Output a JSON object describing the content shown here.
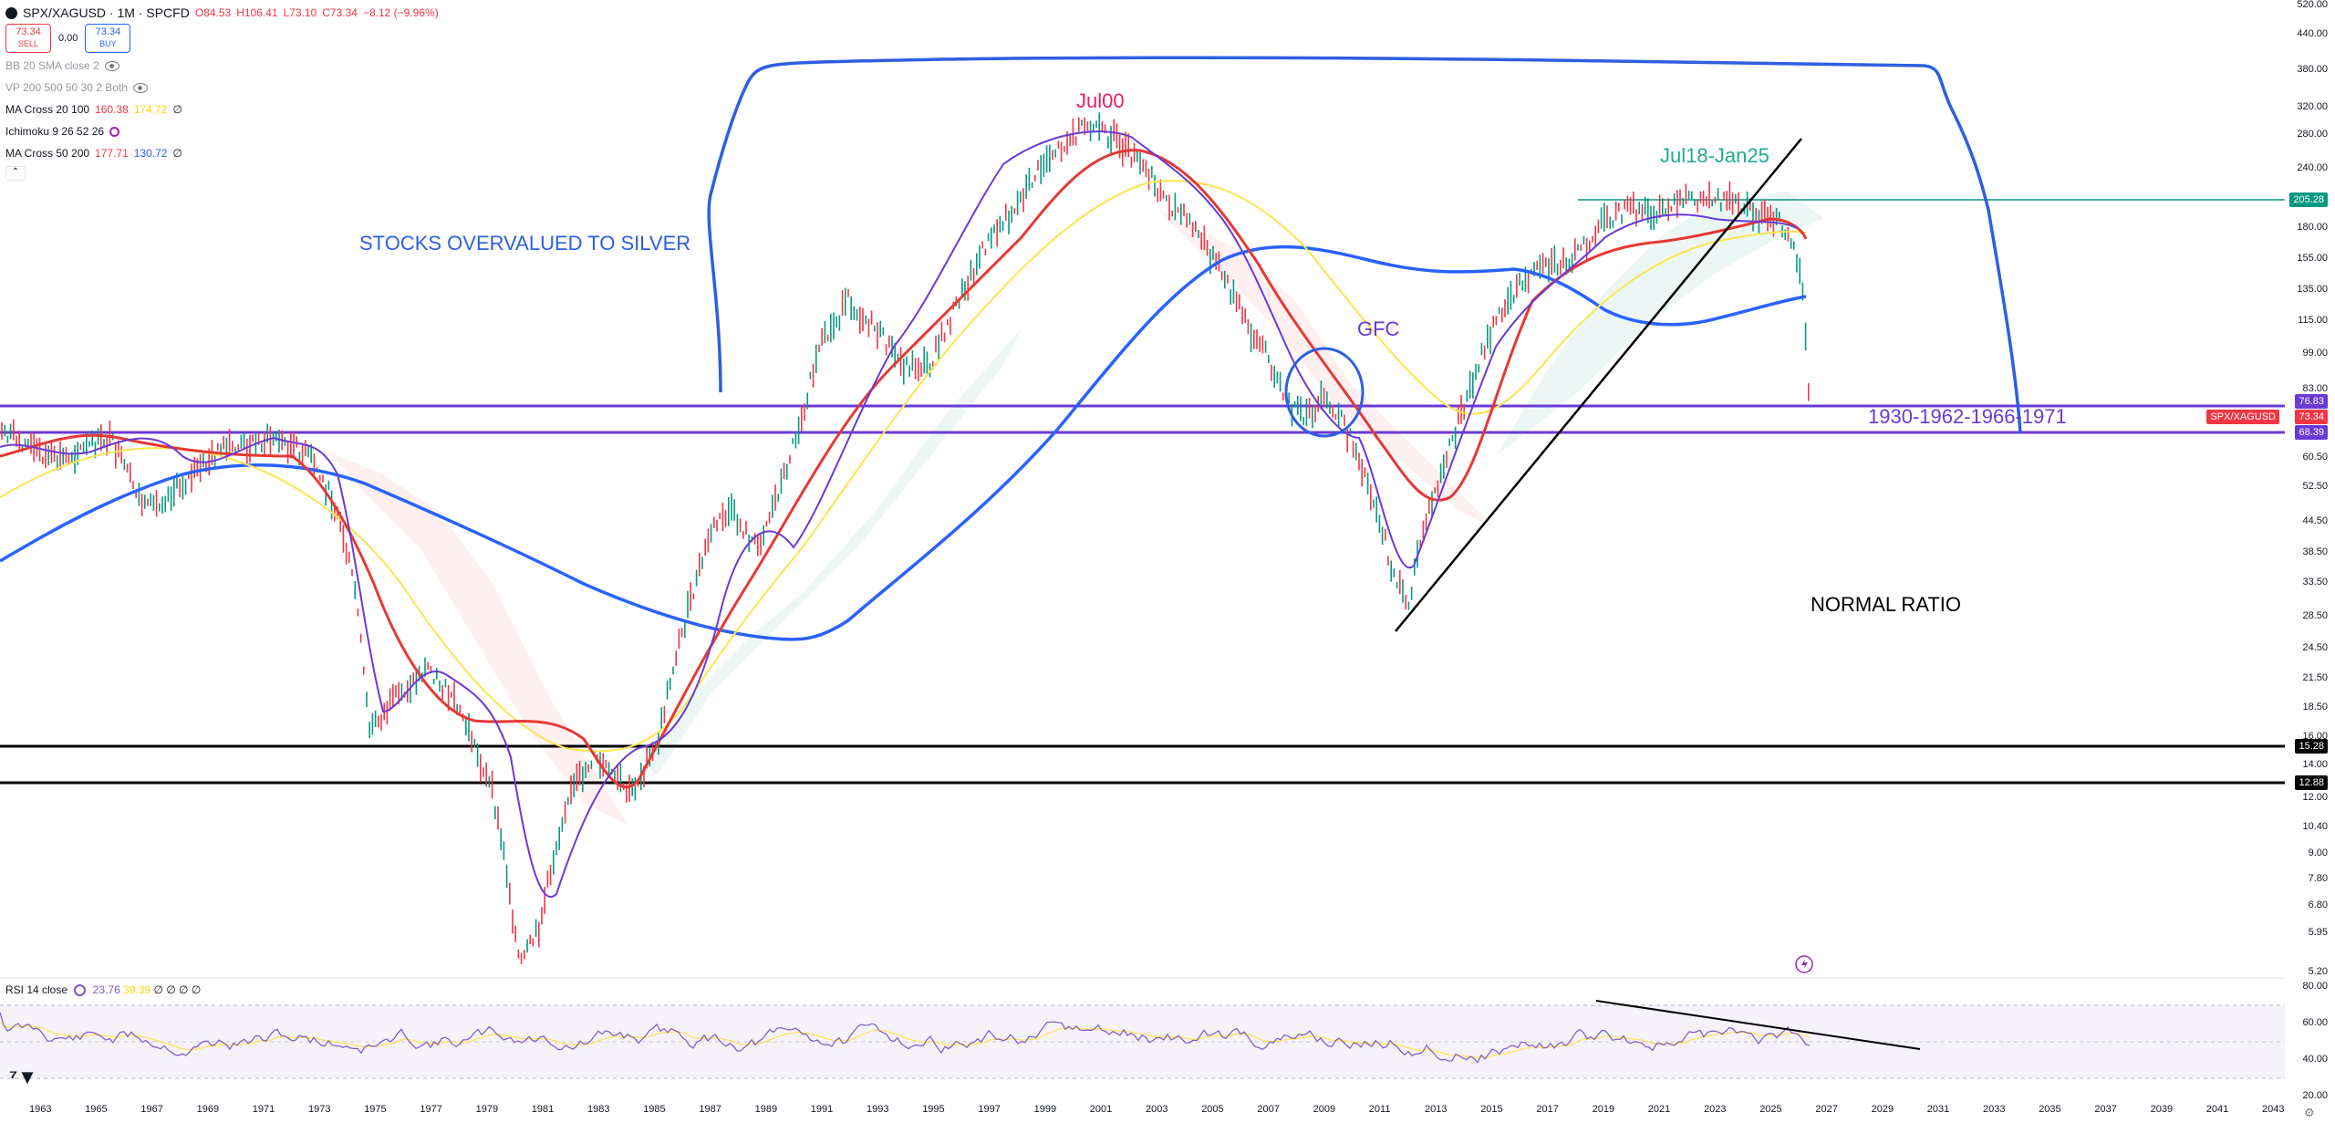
{
  "header": {
    "symbol_line": "SPX/XAGUSD · 1M · SPCFD",
    "ohlc": {
      "o": "O84.53",
      "h": "H106.41",
      "l": "L73.10",
      "c": "C73.34",
      "chg": "−8.12 (−9.96%)"
    },
    "sell_price": "73.34",
    "sell_label": "SELL",
    "spread": "0.00",
    "buy_price": "73.34",
    "buy_label": "BUY"
  },
  "indicators": [
    {
      "name": "BB 20 SMA close 2",
      "values": [],
      "hidden": true
    },
    {
      "name": "VP 200 500 50 30 2 Both",
      "values": [],
      "hidden": true
    },
    {
      "name": "MA Cross 20 100",
      "values": [
        {
          "v": "160.38",
          "color": "#f23645"
        },
        {
          "v": "174.72",
          "color": "#ffd600"
        }
      ],
      "tail": "∅"
    },
    {
      "name": "Ichimoku 9 26 52 26",
      "values": [],
      "tail": ""
    },
    {
      "name": "MA Cross 50 200",
      "values": [
        {
          "v": "177.71",
          "color": "#f23645"
        },
        {
          "v": "130.72",
          "color": "#2962ff"
        }
      ],
      "tail": "∅"
    }
  ],
  "annotations": {
    "stocks_overvalued": "STOCKS OVERVALUED TO SILVER",
    "jul00": "Jul00",
    "jul18_jan25": "Jul18-Jan25",
    "gfc": "GFC",
    "years_range": "1930-1962-1966-1971",
    "normal_ratio": "NORMAL RATIO"
  },
  "price_axis": {
    "ticks": [
      "520.00",
      "440.00",
      "380.00",
      "320.00",
      "280.00",
      "240.00",
      "205.28",
      "180.00",
      "155.00",
      "135.00",
      "115.00",
      "99.00",
      "83.00",
      "76.83",
      "73.34",
      "68.39",
      "60.50",
      "52.50",
      "44.50",
      "38.50",
      "33.50",
      "28.50",
      "24.50",
      "21.50",
      "18.50",
      "16.00",
      "15.28",
      "14.00",
      "12.88",
      "12.00",
      "10.40",
      "9.00",
      "7.80",
      "6.80",
      "5.95",
      "5.20"
    ],
    "badges": {
      "top_line": "205.28",
      "upper_purple": "76.83",
      "current": "73.34",
      "current_label": "SPX/XAGUSD",
      "lower_purple": "68.39",
      "black1": "15.28",
      "black2": "12.88"
    }
  },
  "rsi": {
    "label": "RSI 14 close",
    "value1": "23.76",
    "value2": "39.39",
    "tail": "∅ ∅ ∅ ∅",
    "ticks": [
      "80.00",
      "60.00",
      "40.00",
      "20.00"
    ]
  },
  "time_axis": [
    "1963",
    "1965",
    "1967",
    "1969",
    "1971",
    "1973",
    "1975",
    "1977",
    "1979",
    "1981",
    "1983",
    "1985",
    "1987",
    "1989",
    "1991",
    "1993",
    "1995",
    "1997",
    "1999",
    "2001",
    "2003",
    "2005",
    "2007",
    "2009",
    "2011",
    "2013",
    "2015",
    "2017",
    "2019",
    "2021",
    "2023",
    "2025",
    "2027",
    "2029",
    "2031",
    "2033",
    "2035",
    "2037",
    "2039",
    "2041",
    "2043"
  ],
  "colors": {
    "blue": "#2962ff",
    "red": "#e53935",
    "yellow": "#fbe54f",
    "purple": "#6a3ad6",
    "teal": "#089981",
    "magenta": "#e91e63",
    "cyan": "#22ab94",
    "annotation_blue": "#2d5fe0",
    "black": "#000000",
    "sell_red": "#f23645"
  }
}
